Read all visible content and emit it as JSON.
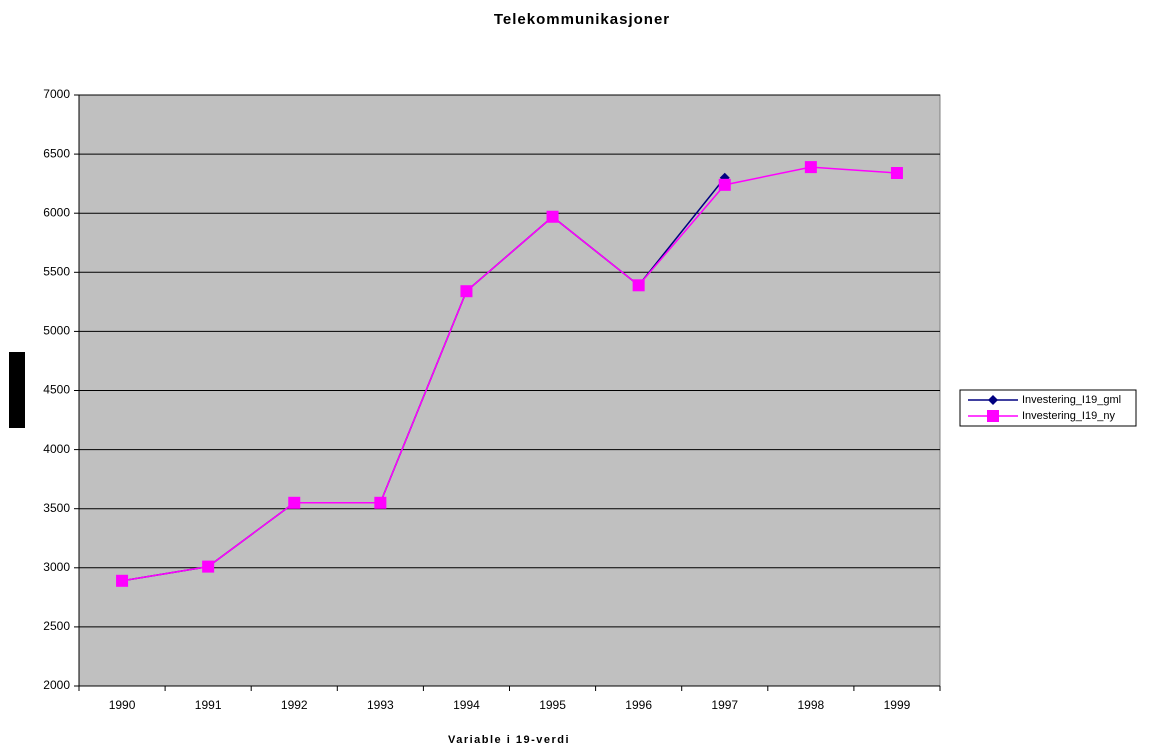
{
  "chart_data": {
    "type": "line",
    "title": "Telekommunikasjoner",
    "x_label": "Variable i 19-verdi",
    "categories": [
      "1990",
      "1991",
      "1992",
      "1993",
      "1994",
      "1995",
      "1996",
      "1997",
      "1998",
      "1999"
    ],
    "series": [
      {
        "name": "Investering_I19_gml",
        "color": "#000080",
        "marker": "diamond",
        "values": [
          2890,
          3010,
          3550,
          3550,
          5340,
          5970,
          5390,
          6300,
          null,
          null
        ]
      },
      {
        "name": "Investering_I19_ny",
        "color": "#ff00ff",
        "marker": "square",
        "values": [
          2890,
          3010,
          3550,
          3550,
          5340,
          5970,
          5390,
          6240,
          6390,
          6340
        ]
      }
    ],
    "ylim": [
      2000,
      7000
    ],
    "yticks": [
      2000,
      2500,
      3000,
      3500,
      4000,
      4500,
      5000,
      5500,
      6000,
      6500,
      7000
    ],
    "grid": true,
    "legend": "right"
  }
}
